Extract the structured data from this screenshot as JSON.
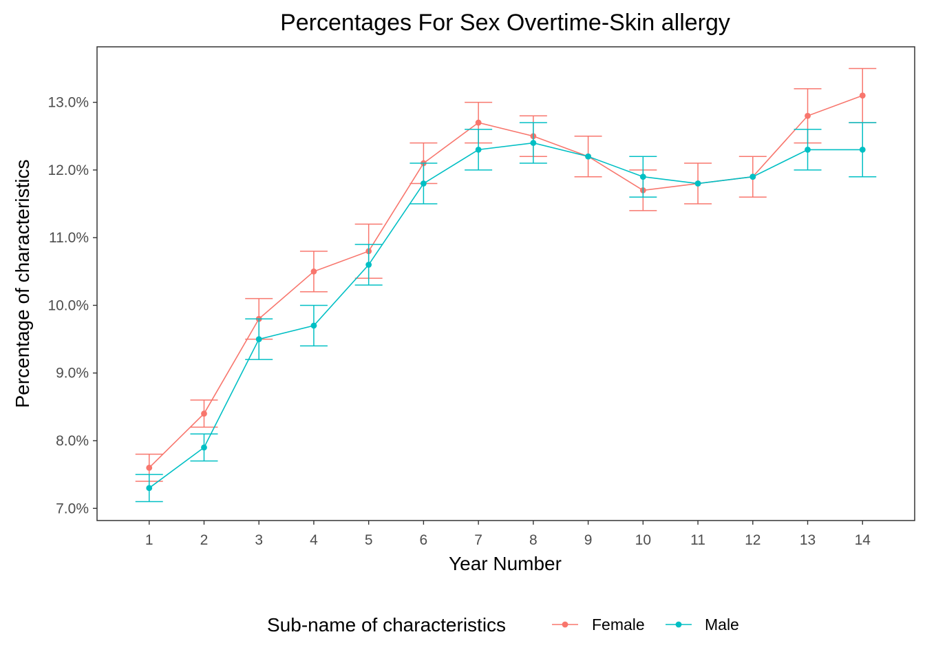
{
  "chart_data": {
    "type": "line",
    "title": "Percentages For Sex Overtime-Skin allergy",
    "xlabel": "Year Number",
    "ylabel": "Percentage of characteristics",
    "x": [
      1,
      2,
      3,
      4,
      5,
      6,
      7,
      8,
      9,
      10,
      11,
      12,
      13,
      14
    ],
    "xlim": [
      0.05,
      14.95
    ],
    "ylim": [
      6.82,
      13.82
    ],
    "y_ticks": [
      7.0,
      8.0,
      9.0,
      10.0,
      11.0,
      12.0,
      13.0
    ],
    "y_tick_labels": [
      "7.0%",
      "8.0%",
      "9.0%",
      "10.0%",
      "11.0%",
      "12.0%",
      "13.0%"
    ],
    "x_tick_labels": [
      "1",
      "2",
      "3",
      "4",
      "5",
      "6",
      "7",
      "8",
      "9",
      "10",
      "11",
      "12",
      "13",
      "14"
    ],
    "grid": false,
    "legend": {
      "title": "Sub-name of characteristics",
      "placement": "bottom"
    },
    "series": [
      {
        "name": "Female",
        "color": "#F8766D",
        "values": [
          7.6,
          8.4,
          9.8,
          10.5,
          10.8,
          12.1,
          12.7,
          12.5,
          12.2,
          11.7,
          11.8,
          11.9,
          12.8,
          13.1
        ],
        "lower": [
          7.4,
          8.2,
          9.5,
          10.2,
          10.4,
          11.8,
          12.4,
          12.2,
          11.9,
          11.4,
          11.5,
          11.6,
          12.4,
          12.7
        ],
        "upper": [
          7.8,
          8.6,
          10.1,
          10.8,
          11.2,
          12.4,
          13.0,
          12.8,
          12.5,
          12.0,
          12.1,
          12.2,
          13.2,
          13.5
        ]
      },
      {
        "name": "Male",
        "color": "#00BFC4",
        "x": [
          1,
          2,
          3,
          4,
          5,
          6,
          7,
          8,
          9,
          10,
          11,
          12,
          13,
          14
        ],
        "values": [
          7.3,
          7.9,
          9.5,
          9.7,
          10.6,
          11.8,
          12.3,
          12.4,
          12.2,
          11.9,
          11.8,
          11.9,
          12.3,
          12.3
        ],
        "lower": [
          7.1,
          7.7,
          9.2,
          9.4,
          10.3,
          11.5,
          12.0,
          12.1,
          null,
          11.6,
          null,
          null,
          12.0,
          11.9
        ],
        "upper": [
          7.5,
          8.1,
          9.8,
          10.0,
          10.9,
          12.1,
          12.6,
          12.7,
          null,
          12.2,
          null,
          null,
          12.6,
          12.7
        ]
      }
    ]
  }
}
